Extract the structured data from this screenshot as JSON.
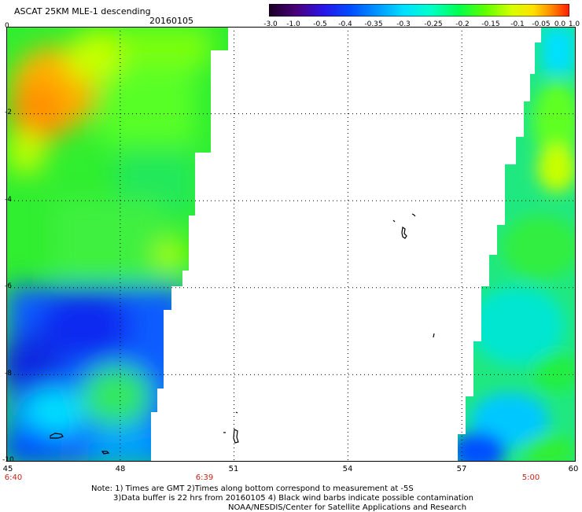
{
  "header": {
    "title": "ASCAT 25KM MLE-1 descending",
    "date": "20160105"
  },
  "colorbar": {
    "labels": [
      "-3.0",
      "-1.0",
      "-0.5",
      "-0.4",
      "-0.35",
      "-0.3",
      "-0.25",
      "-0.2",
      "-0.15",
      "-0.1",
      "-0.05",
      "0.0",
      "1.0"
    ],
    "colors": [
      "#2b0033",
      "#5c00a3",
      "#2f1fe0",
      "#0046ff",
      "#008cff",
      "#00d6ff",
      "#00ffd2",
      "#00ff64",
      "#46ff00",
      "#c8ff00",
      "#ffe600",
      "#ff9200",
      "#ff2a00"
    ]
  },
  "axes": {
    "y_labels": [
      "0",
      "-2",
      "-4",
      "-6",
      "-8",
      "-10"
    ],
    "x_labels": [
      "45",
      "48",
      "51",
      "54",
      "57",
      "60"
    ],
    "lon_range": [
      45,
      60
    ],
    "lat_range": [
      -10,
      0
    ]
  },
  "times": [
    "6:40",
    "6:39",
    "5:00"
  ],
  "notes": {
    "line1": "Note: 1) Times are GMT 2)Times along bottom correspond to measurement at -5S",
    "line2": "3)Data buffer is 22 hrs from 20160105 4) Black wind barbs indicate possible contamination",
    "line3": "NOAA/NESDIS/Center for Satellite Applications and Research"
  },
  "colors": {
    "high": "#ff9a00",
    "mid": "#33ff33",
    "low": "#0033ff",
    "time_label": "#c0261b"
  }
}
